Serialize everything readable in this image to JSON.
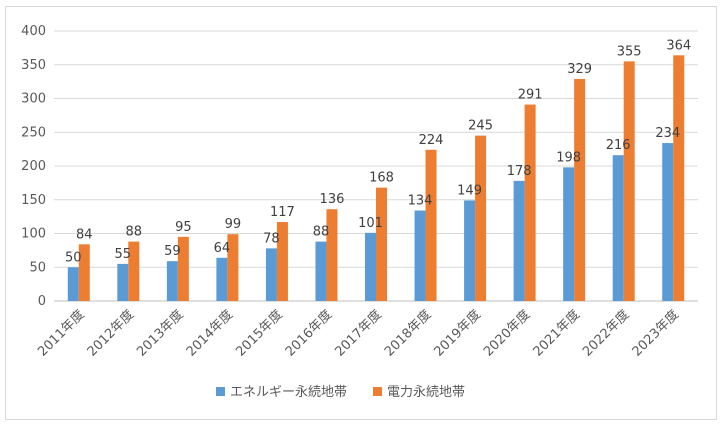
{
  "chart_data": {
    "type": "bar",
    "categories": [
      "2011年度",
      "2012年度",
      "2013年度",
      "2014年度",
      "2015年度",
      "2016年度",
      "2017年度",
      "2018年度",
      "2019年度",
      "2020年度",
      "2021年度",
      "2022年度",
      "2023年度"
    ],
    "series": [
      {
        "name": "エネルギー永続地帯",
        "color": "#5b9bd5",
        "values": [
          50,
          55,
          59,
          64,
          78,
          88,
          101,
          134,
          149,
          178,
          198,
          216,
          234
        ]
      },
      {
        "name": "電力永続地帯",
        "color": "#ed7d31",
        "values": [
          84,
          88,
          95,
          99,
          117,
          136,
          168,
          224,
          245,
          291,
          329,
          355,
          364
        ]
      }
    ],
    "ylim": [
      0,
      400
    ],
    "yticks": [
      0,
      50,
      100,
      150,
      200,
      250,
      300,
      350,
      400
    ],
    "grid": true,
    "legend_position": "bottom",
    "title": "",
    "xlabel": "",
    "ylabel": ""
  }
}
